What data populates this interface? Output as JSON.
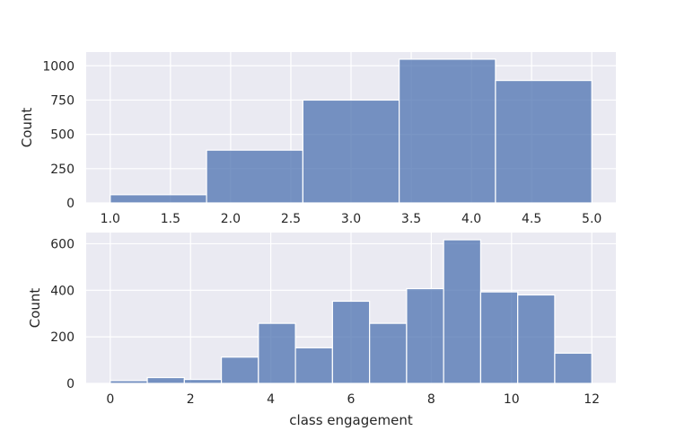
{
  "chart_data": [
    {
      "type": "histogram",
      "xlabel": "",
      "ylabel": "Count",
      "bins": [
        {
          "x0": 1.0,
          "x1": 1.8,
          "count": 60
        },
        {
          "x0": 1.8,
          "x1": 2.6,
          "count": 385
        },
        {
          "x0": 2.6,
          "x1": 3.4,
          "count": 750
        },
        {
          "x0": 3.4,
          "x1": 4.2,
          "count": 1048
        },
        {
          "x0": 4.2,
          "x1": 5.0,
          "count": 893
        }
      ],
      "xlim": [
        0.8,
        5.2
      ],
      "ylim": [
        0,
        1100
      ],
      "xticks": [
        1.0,
        1.5,
        2.0,
        2.5,
        3.0,
        3.5,
        4.0,
        4.5,
        5.0
      ],
      "xtick_labels": [
        "1.0",
        "1.5",
        "2.0",
        "2.5",
        "3.0",
        "3.5",
        "4.0",
        "4.5",
        "5.0"
      ],
      "yticks": [
        0,
        250,
        500,
        750,
        1000
      ],
      "ytick_labels": [
        "0",
        "250",
        "500",
        "750",
        "1000"
      ],
      "grid": true,
      "color": "#4C72B0"
    },
    {
      "type": "histogram",
      "xlabel": "class engagement",
      "ylabel": "Count",
      "bins": [
        {
          "x0": 0.0,
          "x1": 0.923,
          "count": 12
        },
        {
          "x0": 0.923,
          "x1": 1.846,
          "count": 25
        },
        {
          "x0": 1.846,
          "x1": 2.769,
          "count": 17
        },
        {
          "x0": 2.769,
          "x1": 3.692,
          "count": 113
        },
        {
          "x0": 3.692,
          "x1": 4.615,
          "count": 258
        },
        {
          "x0": 4.615,
          "x1": 5.538,
          "count": 153
        },
        {
          "x0": 5.538,
          "x1": 6.462,
          "count": 353
        },
        {
          "x0": 6.462,
          "x1": 7.385,
          "count": 258
        },
        {
          "x0": 7.385,
          "x1": 8.308,
          "count": 407
        },
        {
          "x0": 8.308,
          "x1": 9.231,
          "count": 617
        },
        {
          "x0": 9.231,
          "x1": 10.154,
          "count": 393
        },
        {
          "x0": 10.154,
          "x1": 11.077,
          "count": 380
        },
        {
          "x0": 11.077,
          "x1": 12.0,
          "count": 130
        }
      ],
      "xlim": [
        -0.6,
        12.6
      ],
      "ylim": [
        0,
        648
      ],
      "xticks": [
        0,
        2,
        4,
        6,
        8,
        10,
        12
      ],
      "xtick_labels": [
        "0",
        "2",
        "4",
        "6",
        "8",
        "10",
        "12"
      ],
      "yticks": [
        0,
        200,
        400,
        600
      ],
      "ytick_labels": [
        "0",
        "200",
        "400",
        "600"
      ],
      "grid": true,
      "color": "#4C72B0"
    }
  ]
}
